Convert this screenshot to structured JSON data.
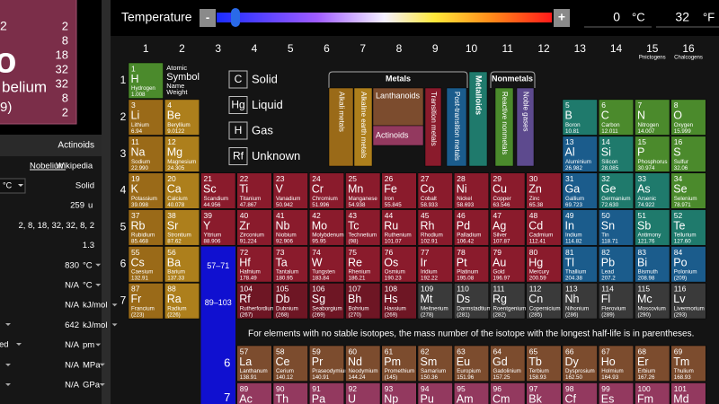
{
  "top_bar": {
    "label": "Temperature",
    "minus": "-",
    "plus": "+",
    "celsius": "0",
    "celsius_unit": "°C",
    "fahrenheit": "32",
    "fahrenheit_unit": "°F"
  },
  "detail": {
    "tile": {
      "number": "2",
      "symbol": "o",
      "name": "belium",
      "mass": "9)",
      "shells": [
        "2",
        "8",
        "18",
        "32",
        "32",
        "8",
        "2"
      ]
    },
    "category": "Actinoids",
    "link": "Nobelium",
    "source": "Wikipedia",
    "unit_select": "°C",
    "stub": "ed",
    "rows": [
      {
        "value": "Solid"
      },
      {
        "value": "259",
        "unit": "u"
      },
      {
        "value": "2, 8, 18, 32, 32, 8, 2"
      },
      {
        "value": "1.3"
      },
      {
        "value": "830",
        "unit": "°C",
        "dropdown": true
      },
      {
        "value": "N/A",
        "unit": "°C",
        "dropdown": true
      },
      {
        "value": "N/A",
        "unit": "kJ/mol",
        "dropdown": true
      },
      {
        "value": "642",
        "unit": "kJ/mol",
        "dropdown": true
      },
      {
        "value": "N/A",
        "unit": "pm",
        "dropdown": true
      },
      {
        "value": "N/A",
        "unit": "MPa",
        "dropdown": true
      },
      {
        "value": "N/A",
        "unit": "GPa",
        "dropdown": true
      }
    ]
  },
  "colors": {
    "nm": "#4b8a2c",
    "ak": "#9a6a18",
    "ae": "#ad7f1c",
    "tm": "#8a1b2c",
    "tmx": "#6e1624",
    "pt": "#1b5c8c",
    "md": "#1f7a6c",
    "ln": "#7c4c2e",
    "ac": "#93395f",
    "uk": "#3a3a3a",
    "ng": "#5d4a8e",
    "range": "#1010d0"
  },
  "state_colors": {
    "g": "#ff4a4a",
    "l": "#6f8cff",
    "u": "#8a8a8a"
  },
  "groups": [
    {
      "label": "1"
    },
    {
      "label": "2"
    },
    {
      "label": "3"
    },
    {
      "label": "4"
    },
    {
      "label": "5"
    },
    {
      "label": "6"
    },
    {
      "label": "7"
    },
    {
      "label": "8"
    },
    {
      "label": "9"
    },
    {
      "label": "10"
    },
    {
      "label": "11"
    },
    {
      "label": "12"
    },
    {
      "label": "13"
    },
    {
      "label": "14"
    },
    {
      "label": "15",
      "name": "Pnictogens"
    },
    {
      "label": "16",
      "name": "Chalcogens"
    }
  ],
  "key": [
    "Atomic",
    "Symbol",
    "Name",
    "Weight"
  ],
  "states": [
    {
      "symbol": "C",
      "label": "Solid"
    },
    {
      "symbol": "Hg",
      "label": "Liquid",
      "state": "l"
    },
    {
      "symbol": "H",
      "label": "Gas",
      "state": "g"
    },
    {
      "symbol": "Rf",
      "label": "Unknown",
      "state": "u"
    }
  ],
  "categories": {
    "metals": "Metals",
    "metalloids": "Metalloids",
    "nonmetals": "Nonmetals",
    "alkali": "Alkali metals",
    "alkaline": "Alkaline earth metals",
    "lanthanoids": "Lanthanoids",
    "actinoids": "Actinoids",
    "transition": "Transition metals",
    "post": "Post-transition metals",
    "reactive": "Reactive nonmetals",
    "noble": "Noble gases"
  },
  "periods": [
    {
      "label": "1",
      "cells": [
        [
          1,
          "H",
          "Hydrogen",
          "1.008",
          "nm",
          "g"
        ],
        null,
        null,
        null,
        null,
        null,
        null,
        null,
        null,
        null,
        null,
        null,
        null,
        null,
        null,
        null
      ]
    },
    {
      "label": "2",
      "cells": [
        [
          3,
          "Li",
          "Lithium",
          "6.94",
          "ak"
        ],
        [
          4,
          "Be",
          "Beryllium",
          "9.0122",
          "ae"
        ],
        null,
        null,
        null,
        null,
        null,
        null,
        null,
        null,
        null,
        null,
        [
          5,
          "B",
          "Boron",
          "10.81",
          "md"
        ],
        [
          6,
          "C",
          "Carbon",
          "12.011",
          "nm"
        ],
        [
          7,
          "N",
          "Nitrogen",
          "14.007",
          "nm",
          "g"
        ],
        [
          8,
          "O",
          "Oxygen",
          "15.999",
          "nm",
          "g"
        ]
      ]
    },
    {
      "label": "3",
      "cells": [
        [
          11,
          "Na",
          "Sodium",
          "22.990",
          "ak"
        ],
        [
          12,
          "Mg",
          "Magnesium",
          "24.305",
          "ae"
        ],
        null,
        null,
        null,
        null,
        null,
        null,
        null,
        null,
        null,
        null,
        [
          13,
          "Al",
          "Aluminium",
          "26.982",
          "pt"
        ],
        [
          14,
          "Si",
          "Silicon",
          "28.085",
          "md"
        ],
        [
          15,
          "P",
          "Phosphorus",
          "30.974",
          "nm"
        ],
        [
          16,
          "S",
          "Sulfur",
          "32.06",
          "nm"
        ]
      ]
    },
    {
      "label": "4",
      "cells": [
        [
          19,
          "K",
          "Potassium",
          "39.098",
          "ak"
        ],
        [
          20,
          "Ca",
          "Calcium",
          "40.078",
          "ae"
        ],
        [
          21,
          "Sc",
          "Scandium",
          "44.956",
          "tm"
        ],
        [
          22,
          "Ti",
          "Titanium",
          "47.867",
          "tm"
        ],
        [
          23,
          "V",
          "Vanadium",
          "50.942",
          "tm"
        ],
        [
          24,
          "Cr",
          "Chromium",
          "51.996",
          "tm"
        ],
        [
          25,
          "Mn",
          "Manganese",
          "54.938",
          "tm"
        ],
        [
          26,
          "Fe",
          "Iron",
          "55.845",
          "tm"
        ],
        [
          27,
          "Co",
          "Cobalt",
          "58.933",
          "tm"
        ],
        [
          28,
          "Ni",
          "Nickel",
          "58.693",
          "tm"
        ],
        [
          29,
          "Cu",
          "Copper",
          "63.546",
          "tm"
        ],
        [
          30,
          "Zn",
          "Zinc",
          "65.38",
          "tm"
        ],
        [
          31,
          "Ga",
          "Gallium",
          "69.723",
          "pt"
        ],
        [
          32,
          "Ge",
          "Germanium",
          "72.630",
          "md"
        ],
        [
          33,
          "As",
          "Arsenic",
          "74.922",
          "md"
        ],
        [
          34,
          "Se",
          "Selenium",
          "78.971",
          "nm"
        ]
      ]
    },
    {
      "label": "5",
      "cells": [
        [
          37,
          "Rb",
          "Rubidium",
          "85.468",
          "ak"
        ],
        [
          38,
          "Sr",
          "Strontium",
          "87.62",
          "ae"
        ],
        [
          39,
          "Y",
          "Yttrium",
          "88.906",
          "tm"
        ],
        [
          40,
          "Zr",
          "Zirconium",
          "91.224",
          "tm"
        ],
        [
          41,
          "Nb",
          "Niobium",
          "92.906",
          "tm"
        ],
        [
          42,
          "Mo",
          "Molybdenum",
          "95.95",
          "tm"
        ],
        [
          43,
          "Tc",
          "Technetium",
          "(98)",
          "tm"
        ],
        [
          44,
          "Ru",
          "Ruthenium",
          "101.07",
          "tm"
        ],
        [
          45,
          "Rh",
          "Rhodium",
          "102.91",
          "tm"
        ],
        [
          46,
          "Pd",
          "Palladium",
          "106.42",
          "tm"
        ],
        [
          47,
          "Ag",
          "Silver",
          "107.87",
          "tm"
        ],
        [
          48,
          "Cd",
          "Cadmium",
          "112.41",
          "tm"
        ],
        [
          49,
          "In",
          "Indium",
          "114.82",
          "pt"
        ],
        [
          50,
          "Sn",
          "Tin",
          "118.71",
          "pt"
        ],
        [
          51,
          "Sb",
          "Antimony",
          "121.76",
          "md"
        ],
        [
          52,
          "Te",
          "Tellurium",
          "127.60",
          "md"
        ]
      ]
    },
    {
      "label": "6",
      "cells": [
        [
          55,
          "Cs",
          "Caesium",
          "132.91",
          "ak"
        ],
        [
          56,
          "Ba",
          "Barium",
          "137.33",
          "ae"
        ],
        null,
        [
          72,
          "Hf",
          "Hafnium",
          "178.49",
          "tm"
        ],
        [
          73,
          "Ta",
          "Tantalum",
          "180.95",
          "tm"
        ],
        [
          74,
          "W",
          "Tungsten",
          "183.84",
          "tm"
        ],
        [
          75,
          "Re",
          "Rhenium",
          "186.21",
          "tm"
        ],
        [
          76,
          "Os",
          "Osmium",
          "190.23",
          "tm"
        ],
        [
          77,
          "Ir",
          "Iridium",
          "192.22",
          "tm"
        ],
        [
          78,
          "Pt",
          "Platinum",
          "195.08",
          "tm"
        ],
        [
          79,
          "Au",
          "Gold",
          "196.97",
          "tm"
        ],
        [
          80,
          "Hg",
          "Mercury",
          "200.59",
          "tm",
          "l"
        ],
        [
          81,
          "Tl",
          "Thallium",
          "204.38",
          "pt"
        ],
        [
          82,
          "Pb",
          "Lead",
          "207.2",
          "pt"
        ],
        [
          83,
          "Bi",
          "Bismuth",
          "208.98",
          "pt"
        ],
        [
          84,
          "Po",
          "Polonium",
          "(209)",
          "pt"
        ]
      ]
    },
    {
      "label": "7",
      "cells": [
        [
          87,
          "Fr",
          "Francium",
          "(223)",
          "ak"
        ],
        [
          88,
          "Ra",
          "Radium",
          "(226)",
          "ae"
        ],
        null,
        [
          104,
          "Rf",
          "Rutherfordium",
          "(267)",
          "tmx",
          "u"
        ],
        [
          105,
          "Db",
          "Dubnium",
          "(268)",
          "tmx",
          "u"
        ],
        [
          106,
          "Sg",
          "Seaborgium",
          "(269)",
          "tmx",
          "u"
        ],
        [
          107,
          "Bh",
          "Bohrium",
          "(270)",
          "tmx",
          "u"
        ],
        [
          108,
          "Hs",
          "Hassium",
          "(269)",
          "tmx",
          "u"
        ],
        [
          109,
          "Mt",
          "Meitnerium",
          "(278)",
          "uk",
          "u"
        ],
        [
          110,
          "Ds",
          "Darmstadtium",
          "(281)",
          "uk",
          "u"
        ],
        [
          111,
          "Rg",
          "Roentgenium",
          "(282)",
          "uk",
          "u"
        ],
        [
          112,
          "Cn",
          "Copernicium",
          "(285)",
          "uk",
          "u"
        ],
        [
          113,
          "Nh",
          "Nihonium",
          "(286)",
          "uk",
          "u"
        ],
        [
          114,
          "Fl",
          "Flerovium",
          "(289)",
          "uk",
          "u"
        ],
        [
          115,
          "Mc",
          "Moscovium",
          "(290)",
          "uk",
          "u"
        ],
        [
          116,
          "Lv",
          "Livermorium",
          "(293)",
          "uk",
          "u"
        ]
      ]
    }
  ],
  "ranges": [
    "57–71",
    "89–103"
  ],
  "note": "For elements with no stable isotopes, the mass number of the isotope with the longest half-life is in parentheses.",
  "lanthanides": {
    "label": "6",
    "cells": [
      [
        57,
        "La",
        "Lanthanum",
        "138.91",
        "ln"
      ],
      [
        58,
        "Ce",
        "Cerium",
        "140.12",
        "ln"
      ],
      [
        59,
        "Pr",
        "Praseodymium",
        "140.91",
        "ln"
      ],
      [
        60,
        "Nd",
        "Neodymium",
        "144.24",
        "ln"
      ],
      [
        61,
        "Pm",
        "Promethium",
        "(145)",
        "ln"
      ],
      [
        62,
        "Sm",
        "Samarium",
        "150.36",
        "ln"
      ],
      [
        63,
        "Eu",
        "Europium",
        "151.96",
        "ln"
      ],
      [
        64,
        "Gd",
        "Gadolinium",
        "157.25",
        "ln"
      ],
      [
        65,
        "Tb",
        "Terbium",
        "158.93",
        "ln"
      ],
      [
        66,
        "Dy",
        "Dysprosium",
        "162.50",
        "ln"
      ],
      [
        67,
        "Ho",
        "Holmium",
        "164.93",
        "ln"
      ],
      [
        68,
        "Er",
        "Erbium",
        "167.26",
        "ln"
      ],
      [
        69,
        "Tm",
        "Thulium",
        "168.93",
        "ln"
      ]
    ]
  },
  "actinides": {
    "label": "7",
    "cells": [
      [
        89,
        "Ac"
      ],
      [
        90,
        "Th"
      ],
      [
        91,
        "Pa"
      ],
      [
        92,
        "U"
      ],
      [
        93,
        "Np"
      ],
      [
        94,
        "Pu"
      ],
      [
        95,
        "Am"
      ],
      [
        96,
        "Cm"
      ],
      [
        97,
        "Bk"
      ],
      [
        98,
        "Cf"
      ],
      [
        99,
        "Es"
      ],
      [
        100,
        "Fm"
      ],
      [
        101,
        "Md"
      ]
    ]
  }
}
